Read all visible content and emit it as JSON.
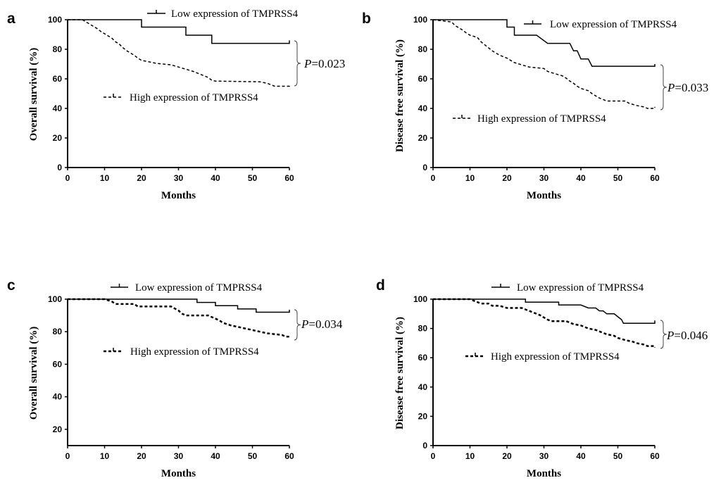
{
  "chart_data": [
    {
      "panel": "a",
      "type": "line",
      "xlabel": "Months",
      "ylabel": "Overall survival (%)",
      "xlim": [
        0,
        60
      ],
      "ylim": [
        0,
        100
      ],
      "xticks": [
        0,
        10,
        20,
        30,
        40,
        50,
        60
      ],
      "yticks": [
        0,
        20,
        40,
        60,
        80,
        100
      ],
      "p_prefix": "P",
      "p_value": "=0.023",
      "series": [
        {
          "name": "Low expression of TMPRSS4",
          "style": "solid",
          "points": [
            [
              0,
              100
            ],
            [
              20,
              100
            ],
            [
              20,
              95
            ],
            [
              32,
              95
            ],
            [
              32,
              89.5
            ],
            [
              39,
              89.5
            ],
            [
              39,
              84
            ],
            [
              60,
              84
            ],
            [
              60,
              86
            ]
          ]
        },
        {
          "name": "High expression of TMPRSS4",
          "style": "dashed",
          "points": [
            [
              0,
              100
            ],
            [
              4,
              100
            ],
            [
              5,
              98.5
            ],
            [
              6,
              97
            ],
            [
              7,
              95.5
            ],
            [
              8,
              94
            ],
            [
              9,
              92
            ],
            [
              10,
              90.5
            ],
            [
              11,
              89
            ],
            [
              12,
              87.5
            ],
            [
              13,
              85
            ],
            [
              14,
              83.5
            ],
            [
              15,
              81
            ],
            [
              16,
              79
            ],
            [
              17,
              77.5
            ],
            [
              18,
              76
            ],
            [
              19,
              74
            ],
            [
              20,
              72.5
            ],
            [
              22,
              71.5
            ],
            [
              24,
              70.5
            ],
            [
              28,
              69.5
            ],
            [
              30,
              68
            ],
            [
              32,
              66.5
            ],
            [
              34,
              65
            ],
            [
              36,
              63
            ],
            [
              38,
              61
            ],
            [
              39,
              59
            ],
            [
              40,
              58.5
            ],
            [
              52,
              58
            ],
            [
              54,
              57
            ],
            [
              56,
              55
            ],
            [
              60,
              55
            ],
            [
              60,
              56
            ]
          ]
        }
      ]
    },
    {
      "panel": "b",
      "type": "line",
      "xlabel": "Months",
      "ylabel": "Disease free survival (%)",
      "xlim": [
        0,
        60
      ],
      "ylim": [
        0,
        100
      ],
      "xticks": [
        0,
        10,
        20,
        30,
        40,
        50,
        60
      ],
      "yticks": [
        0,
        20,
        40,
        60,
        80,
        100
      ],
      "p_prefix": "P",
      "p_value": "=0.033",
      "series": [
        {
          "name": "Low expression of TMPRSS4",
          "style": "solid",
          "points": [
            [
              0,
              100
            ],
            [
              20,
              100
            ],
            [
              20,
              95
            ],
            [
              22,
              95
            ],
            [
              22,
              89.5
            ],
            [
              28,
              89.5
            ],
            [
              31,
              84
            ],
            [
              37,
              84
            ],
            [
              38,
              79
            ],
            [
              39,
              79
            ],
            [
              40,
              73.5
            ],
            [
              42,
              73.5
            ],
            [
              43,
              68.5
            ],
            [
              60,
              68.5
            ],
            [
              60,
              70
            ]
          ]
        },
        {
          "name": "High expression of TMPRSS4",
          "style": "dashed",
          "points": [
            [
              0,
              100
            ],
            [
              5,
              98.5
            ],
            [
              6,
              96
            ],
            [
              7,
              94.5
            ],
            [
              8,
              93
            ],
            [
              9,
              91
            ],
            [
              10,
              89.5
            ],
            [
              12,
              88
            ],
            [
              13,
              85
            ],
            [
              14,
              83
            ],
            [
              15,
              81
            ],
            [
              16,
              79
            ],
            [
              17,
              77.5
            ],
            [
              18,
              76
            ],
            [
              20,
              74
            ],
            [
              21,
              72.5
            ],
            [
              22,
              71
            ],
            [
              24,
              69.5
            ],
            [
              26,
              68
            ],
            [
              30,
              67
            ],
            [
              31,
              65
            ],
            [
              33,
              63.5
            ],
            [
              35,
              62
            ],
            [
              36,
              60.5
            ],
            [
              37,
              58.5
            ],
            [
              38,
              57
            ],
            [
              39,
              55
            ],
            [
              40,
              53.5
            ],
            [
              42,
              52
            ],
            [
              43,
              50
            ],
            [
              44,
              48.5
            ],
            [
              45,
              47
            ],
            [
              47,
              45
            ],
            [
              52,
              45
            ],
            [
              53,
              43.5
            ],
            [
              55,
              42
            ],
            [
              57,
              41
            ],
            [
              58,
              40
            ],
            [
              60,
              40
            ],
            [
              60,
              41
            ]
          ]
        }
      ]
    },
    {
      "panel": "c",
      "type": "line",
      "xlabel": "Months",
      "ylabel": "Overall survival (%)",
      "xlim": [
        0,
        60
      ],
      "ylim": [
        10,
        100
      ],
      "xticks": [
        0,
        10,
        20,
        30,
        40,
        50,
        60
      ],
      "yticks": [
        20,
        40,
        60,
        80,
        100
      ],
      "p_prefix": "P",
      "p_value": "=0.034",
      "series": [
        {
          "name": "Low expression of TMPRSS4",
          "style": "solid",
          "points": [
            [
              0,
              100
            ],
            [
              35,
              100
            ],
            [
              35,
              98
            ],
            [
              40,
              98
            ],
            [
              40,
              96
            ],
            [
              46,
              96
            ],
            [
              46,
              94
            ],
            [
              51,
              94
            ],
            [
              51,
              92
            ],
            [
              60,
              92
            ],
            [
              60,
              93.5
            ]
          ]
        },
        {
          "name": "High expression of TMPRSS4",
          "style": "dashed",
          "points": [
            [
              0,
              100
            ],
            [
              10,
              100
            ],
            [
              12,
              98.5
            ],
            [
              13,
              97
            ],
            [
              18,
              97
            ],
            [
              19,
              95.5
            ],
            [
              28,
              95.5
            ],
            [
              30,
              93
            ],
            [
              31,
              91
            ],
            [
              32,
              90
            ],
            [
              38,
              90
            ],
            [
              40,
              88
            ],
            [
              41,
              87
            ],
            [
              42,
              85.5
            ],
            [
              44,
              84
            ],
            [
              46,
              83
            ],
            [
              48,
              82
            ],
            [
              50,
              81
            ],
            [
              52,
              80
            ],
            [
              54,
              79
            ],
            [
              56,
              78.5
            ],
            [
              58,
              78
            ],
            [
              59,
              77
            ],
            [
              60,
              77
            ],
            [
              60,
              78
            ]
          ]
        }
      ]
    },
    {
      "panel": "d",
      "type": "line",
      "xlabel": "Months",
      "ylabel": "Disease free survival (%)",
      "xlim": [
        0,
        60
      ],
      "ylim": [
        0,
        100
      ],
      "xticks": [
        0,
        10,
        20,
        30,
        40,
        50,
        60
      ],
      "yticks": [
        0,
        20,
        40,
        60,
        80,
        100
      ],
      "p_prefix": "P",
      "p_value": "=0.046",
      "series": [
        {
          "name": "Low expression of TMPRSS4",
          "style": "solid",
          "points": [
            [
              0,
              100
            ],
            [
              25,
              100
            ],
            [
              25,
              98
            ],
            [
              34,
              98
            ],
            [
              34,
              96
            ],
            [
              40,
              96
            ],
            [
              42,
              94
            ],
            [
              44,
              94
            ],
            [
              45,
              92
            ],
            [
              46,
              92
            ],
            [
              47,
              90
            ],
            [
              49,
              90
            ],
            [
              50,
              88
            ],
            [
              51,
              86
            ],
            [
              51.5,
              83.5
            ],
            [
              60,
              83.5
            ],
            [
              60,
              85.5
            ]
          ]
        },
        {
          "name": "High expression of TMPRSS4",
          "style": "dashed",
          "points": [
            [
              0,
              100
            ],
            [
              10,
              100
            ],
            [
              12,
              98
            ],
            [
              13,
              97
            ],
            [
              15,
              97
            ],
            [
              16,
              95.5
            ],
            [
              18,
              95.5
            ],
            [
              20,
              94
            ],
            [
              24,
              94
            ],
            [
              25,
              93
            ],
            [
              27,
              91
            ],
            [
              29,
              89
            ],
            [
              30,
              87.5
            ],
            [
              31,
              86
            ],
            [
              32,
              85
            ],
            [
              36,
              85
            ],
            [
              37,
              84
            ],
            [
              38,
              83
            ],
            [
              40,
              82
            ],
            [
              41,
              81
            ],
            [
              42,
              80
            ],
            [
              44,
              79
            ],
            [
              45,
              78
            ],
            [
              47,
              76
            ],
            [
              49,
              75
            ],
            [
              50,
              73.5
            ],
            [
              52,
              72
            ],
            [
              54,
              71
            ],
            [
              55,
              70
            ],
            [
              57,
              69
            ],
            [
              58,
              68
            ],
            [
              60,
              68
            ],
            [
              60,
              67
            ]
          ]
        }
      ]
    }
  ]
}
